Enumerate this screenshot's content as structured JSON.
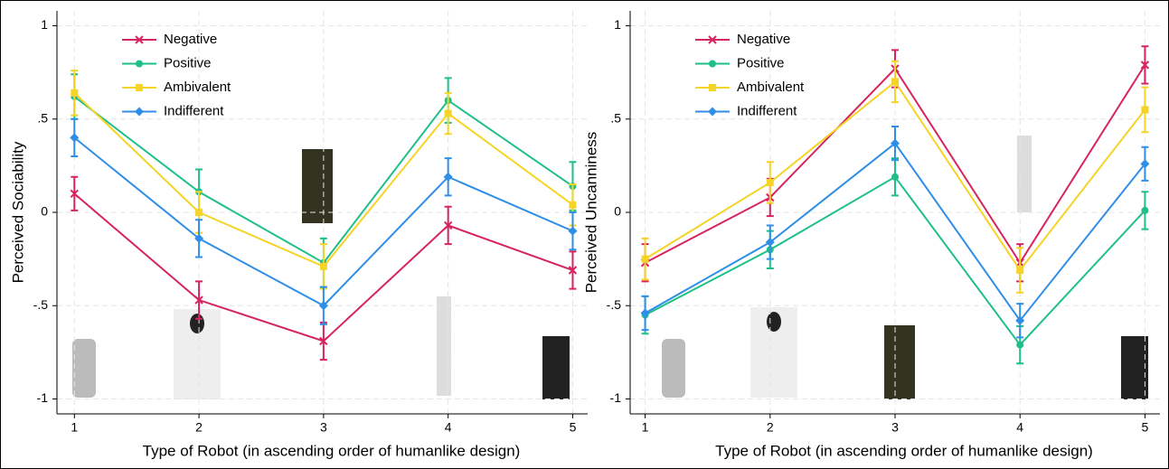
{
  "chart_data": [
    {
      "type": "line",
      "ylabel": "Perceived Sociability",
      "xlabel": "Type of Robot (in ascending order of humanlike design)",
      "x": [
        1,
        2,
        3,
        4,
        5
      ],
      "xlim": [
        0.86,
        5.12
      ],
      "xticks": [
        1,
        2,
        3,
        4,
        5
      ],
      "ylim": [
        -1.08,
        1.08
      ],
      "yticks": [
        {
          "value": -1,
          "label": "-1"
        },
        {
          "value": -0.5,
          "label": "-.5"
        },
        0,
        {
          "value": 0.5,
          "label": ".5"
        },
        1
      ],
      "grid": true,
      "legend": "upper left",
      "series": [
        {
          "name": "Negative",
          "color": "#d6245e",
          "marker": "x",
          "values": [
            0.1,
            -0.47,
            -0.69,
            -0.07,
            -0.31
          ],
          "errors": [
            0.09,
            0.1,
            0.1,
            0.1,
            0.1
          ]
        },
        {
          "name": "Positive",
          "color": "#1fbf8a",
          "marker": "circle",
          "values": [
            0.62,
            0.11,
            -0.27,
            0.6,
            0.14
          ],
          "errors": [
            0.12,
            0.12,
            0.13,
            0.12,
            0.13
          ]
        },
        {
          "name": "Ambivalent",
          "color": "#f5d327",
          "marker": "square",
          "values": [
            0.64,
            0.0,
            -0.29,
            0.53,
            0.04
          ],
          "errors": [
            0.12,
            0.11,
            0.12,
            0.11,
            0.11
          ]
        },
        {
          "name": "Indifferent",
          "color": "#2f8ee8",
          "marker": "diamond",
          "values": [
            0.4,
            -0.14,
            -0.5,
            0.19,
            -0.1
          ],
          "errors": [
            0.1,
            0.1,
            0.1,
            0.1,
            0.1
          ]
        }
      ]
    },
    {
      "type": "line",
      "ylabel": "Perceived Uncanniness",
      "xlabel": "Type of Robot (in ascending order of humanlike design)",
      "x": [
        1,
        2,
        3,
        4,
        5
      ],
      "xlim": [
        0.88,
        5.12
      ],
      "xticks": [
        1,
        2,
        3,
        4,
        5
      ],
      "ylim": [
        -1.08,
        1.08
      ],
      "yticks": [
        {
          "value": -1,
          "label": "-1"
        },
        {
          "value": -0.5,
          "label": "-.5"
        },
        0,
        {
          "value": 0.5,
          "label": ".5"
        },
        1
      ],
      "grid": true,
      "legend": "upper left",
      "series": [
        {
          "name": "Negative",
          "color": "#d6245e",
          "marker": "x",
          "values": [
            -0.27,
            0.08,
            0.77,
            -0.27,
            0.79
          ],
          "errors": [
            0.1,
            0.1,
            0.1,
            0.1,
            0.1
          ]
        },
        {
          "name": "Positive",
          "color": "#1fbf8a",
          "marker": "circle",
          "values": [
            -0.55,
            -0.2,
            0.19,
            -0.71,
            0.01
          ],
          "errors": [
            0.1,
            0.1,
            0.1,
            0.1,
            0.1
          ]
        },
        {
          "name": "Ambivalent",
          "color": "#f5d327",
          "marker": "square",
          "values": [
            -0.25,
            0.16,
            0.7,
            -0.31,
            0.55
          ],
          "errors": [
            0.11,
            0.11,
            0.11,
            0.12,
            0.12
          ]
        },
        {
          "name": "Indifferent",
          "color": "#2f8ee8",
          "marker": "diamond",
          "values": [
            -0.54,
            -0.16,
            0.37,
            -0.58,
            0.26
          ],
          "errors": [
            0.09,
            0.09,
            0.09,
            0.09,
            0.09
          ]
        }
      ]
    }
  ]
}
